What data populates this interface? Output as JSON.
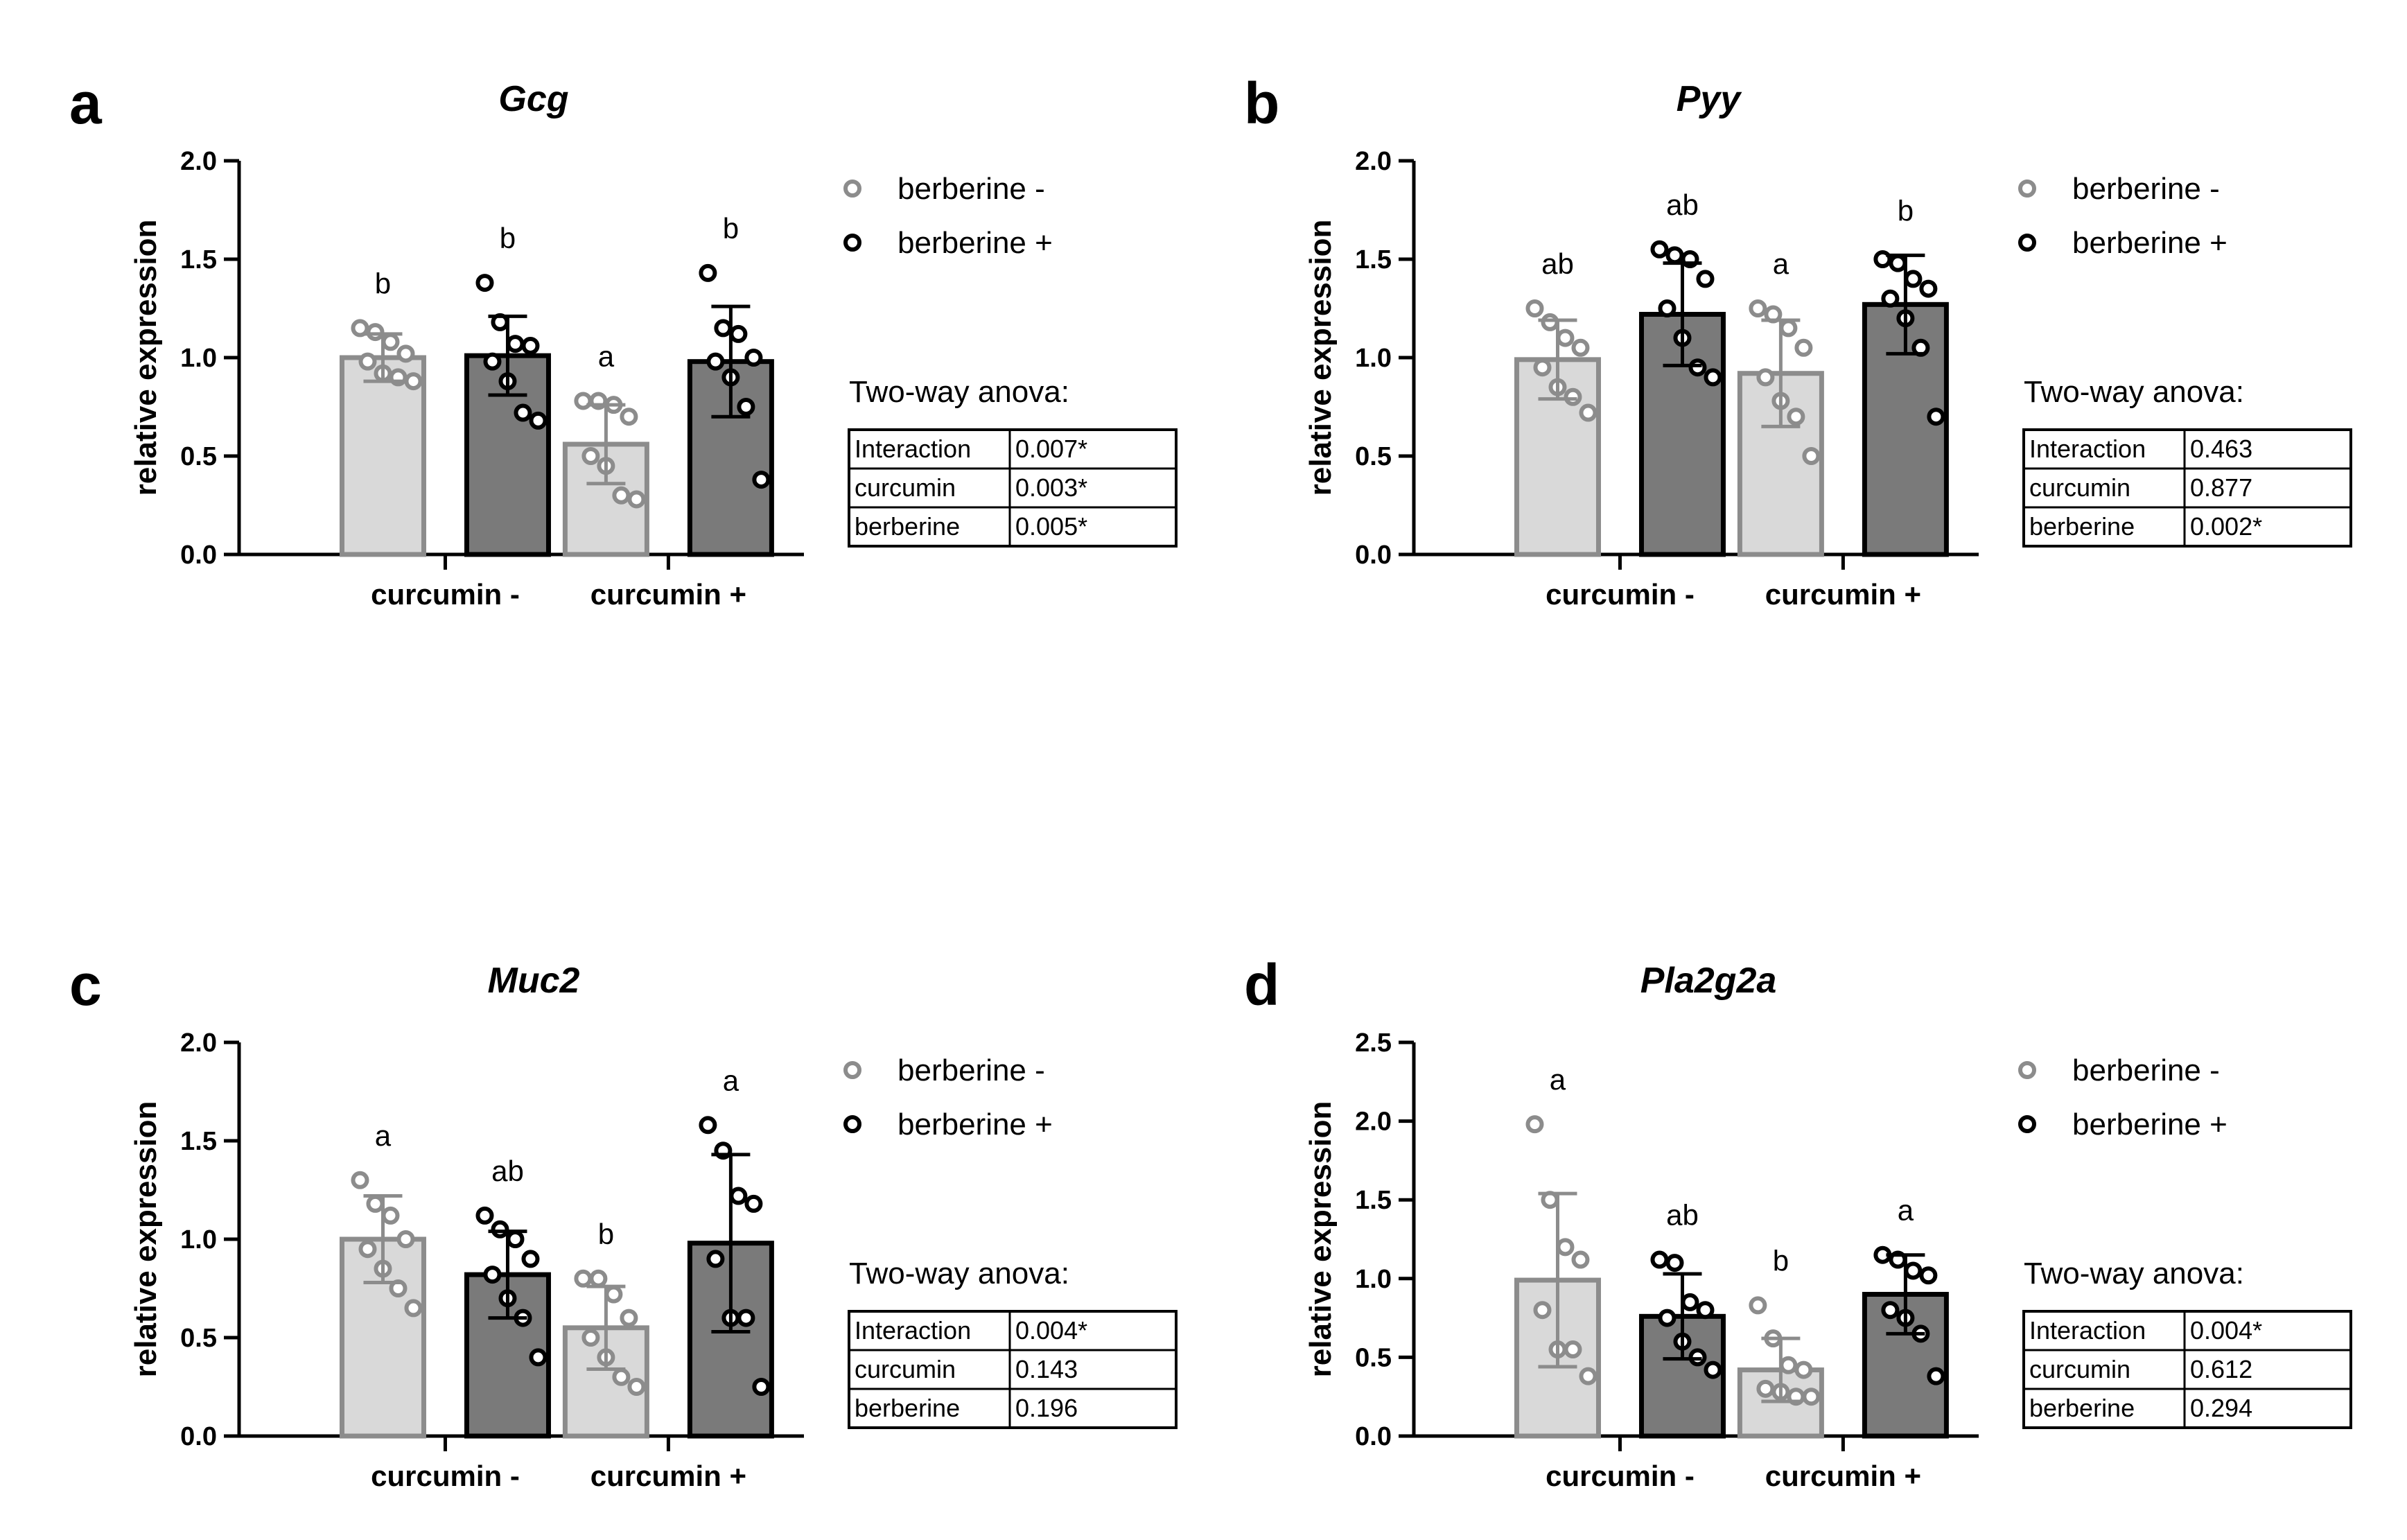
{
  "figure": {
    "legend": {
      "neg_label": "berberine -",
      "pos_label": "berberine +"
    },
    "x_categories": [
      "curcumin -",
      "curcumin +"
    ],
    "colors": {
      "neg_fill": "#d9d9d9",
      "neg_stroke": "#8c8c8c",
      "pos_fill": "#7a7a7a",
      "pos_stroke": "#000000",
      "axis": "#000000"
    }
  },
  "chart_data": [
    {
      "panel": "a",
      "title": "Gcg",
      "type": "bar",
      "ylabel": "relative expression",
      "xlabel": "",
      "ylim": [
        0,
        2.0
      ],
      "yticks": [
        "0.0",
        "0.5",
        "1.0",
        "1.5",
        "2.0"
      ],
      "categories": [
        "curcumin -",
        "curcumin +"
      ],
      "series": [
        {
          "name": "berberine -",
          "values": [
            1.0,
            0.56
          ],
          "errors": [
            0.12,
            0.2
          ],
          "letters": [
            "b",
            "a"
          ],
          "points": [
            [
              1.15,
              1.13,
              1.08,
              1.02,
              0.98,
              0.92,
              0.9,
              0.88
            ],
            [
              0.78,
              0.78,
              0.76,
              0.7,
              0.5,
              0.45,
              0.3,
              0.28
            ]
          ]
        },
        {
          "name": "berberine +",
          "values": [
            1.01,
            0.98
          ],
          "errors": [
            0.2,
            0.28
          ],
          "letters": [
            "b",
            "b"
          ],
          "points": [
            [
              1.38,
              1.18,
              1.07,
              1.06,
              0.98,
              0.88,
              0.72,
              0.68
            ],
            [
              1.43,
              1.15,
              1.12,
              1.0,
              0.98,
              0.9,
              0.75,
              0.38
            ]
          ]
        }
      ],
      "anova": {
        "title": "Two-way anova:",
        "rows": [
          {
            "factor": "Interaction",
            "p": "0.007*"
          },
          {
            "factor": "curcumin",
            "p": "0.003*"
          },
          {
            "factor": "berberine",
            "p": "0.005*"
          }
        ]
      }
    },
    {
      "panel": "b",
      "title": "Pyy",
      "type": "bar",
      "ylabel": "relative expression",
      "xlabel": "",
      "ylim": [
        0,
        2.0
      ],
      "yticks": [
        "0.0",
        "0.5",
        "1.0",
        "1.5",
        "2.0"
      ],
      "categories": [
        "curcumin -",
        "curcumin +"
      ],
      "series": [
        {
          "name": "berberine -",
          "values": [
            0.99,
            0.92
          ],
          "errors": [
            0.2,
            0.27
          ],
          "letters": [
            "ab",
            "a"
          ],
          "points": [
            [
              1.25,
              1.18,
              1.1,
              1.05,
              0.95,
              0.85,
              0.8,
              0.72
            ],
            [
              1.25,
              1.22,
              1.15,
              1.05,
              0.9,
              0.78,
              0.7,
              0.5
            ]
          ]
        },
        {
          "name": "berberine +",
          "values": [
            1.22,
            1.27
          ],
          "errors": [
            0.26,
            0.25
          ],
          "letters": [
            "ab",
            "b"
          ],
          "points": [
            [
              1.55,
              1.52,
              1.5,
              1.4,
              1.25,
              1.1,
              0.95,
              0.9
            ],
            [
              1.5,
              1.48,
              1.4,
              1.35,
              1.3,
              1.2,
              1.05,
              0.7
            ]
          ]
        }
      ],
      "anova": {
        "title": "Two-way anova:",
        "rows": [
          {
            "factor": "Interaction",
            "p": "0.463"
          },
          {
            "factor": "curcumin",
            "p": "0.877"
          },
          {
            "factor": "berberine",
            "p": "0.002*"
          }
        ]
      }
    },
    {
      "panel": "c",
      "title": "Muc2",
      "type": "bar",
      "ylabel": "relative expression",
      "xlabel": "",
      "ylim": [
        0,
        2.0
      ],
      "yticks": [
        "0.0",
        "0.5",
        "1.0",
        "1.5",
        "2.0"
      ],
      "categories": [
        "curcumin -",
        "curcumin +"
      ],
      "series": [
        {
          "name": "berberine -",
          "values": [
            1.0,
            0.55
          ],
          "errors": [
            0.22,
            0.21
          ],
          "letters": [
            "a",
            "b"
          ],
          "points": [
            [
              1.3,
              1.18,
              1.12,
              1.0,
              0.95,
              0.85,
              0.75,
              0.65
            ],
            [
              0.8,
              0.8,
              0.72,
              0.6,
              0.5,
              0.4,
              0.3,
              0.25
            ]
          ]
        },
        {
          "name": "berberine +",
          "values": [
            0.82,
            0.98
          ],
          "errors": [
            0.22,
            0.45
          ],
          "letters": [
            "ab",
            "a"
          ],
          "points": [
            [
              1.12,
              1.05,
              1.0,
              0.9,
              0.82,
              0.7,
              0.6,
              0.4
            ],
            [
              1.58,
              1.45,
              1.22,
              1.18,
              0.9,
              0.6,
              0.6,
              0.25
            ]
          ]
        }
      ],
      "anova": {
        "title": "Two-way anova:",
        "rows": [
          {
            "factor": "Interaction",
            "p": "0.004*"
          },
          {
            "factor": "curcumin",
            "p": "0.143"
          },
          {
            "factor": "berberine",
            "p": "0.196"
          }
        ]
      }
    },
    {
      "panel": "d",
      "title": "Pla2g2a",
      "type": "bar",
      "ylabel": "relative expression",
      "xlabel": "",
      "ylim": [
        0,
        2.5
      ],
      "yticks": [
        "0.0",
        "0.5",
        "1.0",
        "1.5",
        "2.0",
        "2.5"
      ],
      "categories": [
        "curcumin -",
        "curcumin +"
      ],
      "series": [
        {
          "name": "berberine -",
          "values": [
            0.99,
            0.42
          ],
          "errors": [
            0.55,
            0.2
          ],
          "letters": [
            "a",
            "b"
          ],
          "points": [
            [
              1.98,
              1.5,
              1.2,
              1.12,
              0.8,
              0.55,
              0.55,
              0.38
            ],
            [
              0.83,
              0.62,
              0.45,
              0.42,
              0.3,
              0.28,
              0.25,
              0.25
            ]
          ]
        },
        {
          "name": "berberine +",
          "values": [
            0.76,
            0.9
          ],
          "errors": [
            0.27,
            0.25
          ],
          "letters": [
            "ab",
            "a"
          ],
          "points": [
            [
              1.12,
              1.1,
              0.85,
              0.8,
              0.75,
              0.6,
              0.5,
              0.42
            ],
            [
              1.15,
              1.12,
              1.05,
              1.02,
              0.8,
              0.75,
              0.65,
              0.38
            ]
          ]
        }
      ],
      "anova": {
        "title": "Two-way anova:",
        "rows": [
          {
            "factor": "Interaction",
            "p": "0.004*"
          },
          {
            "factor": "curcumin",
            "p": "0.612"
          },
          {
            "factor": "berberine",
            "p": "0.294"
          }
        ]
      }
    }
  ]
}
